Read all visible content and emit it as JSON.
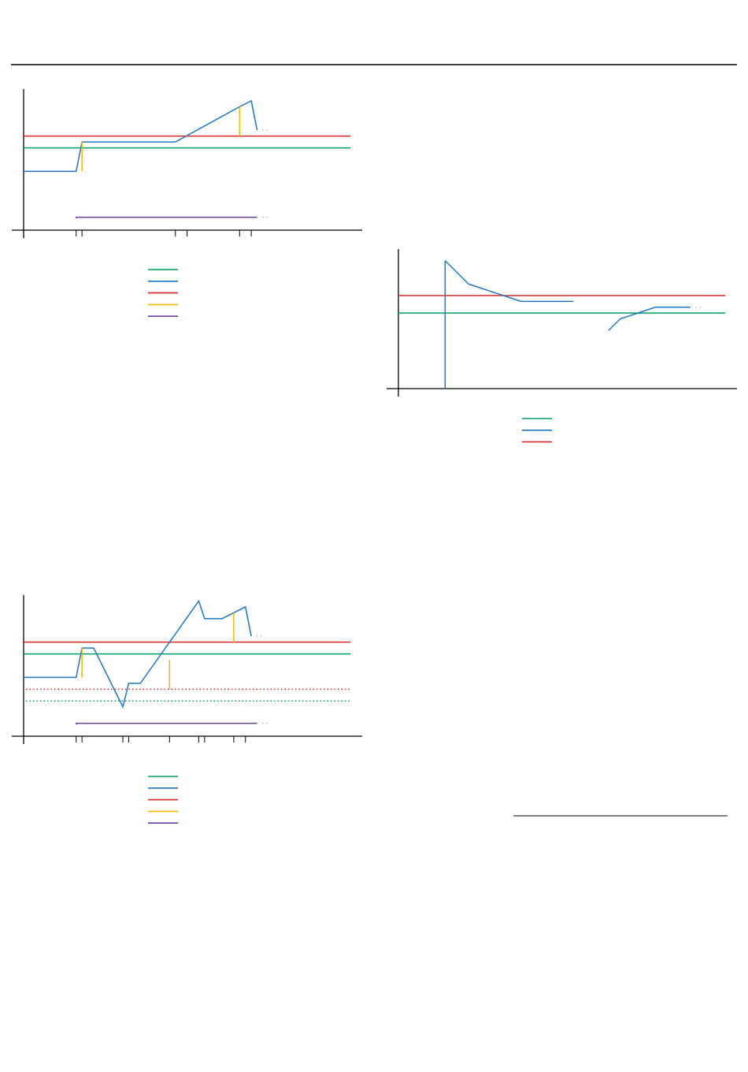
{
  "colors": {
    "green": "#009e60",
    "blue": "#1f77c4",
    "red": "#d62728",
    "yellow": "#f5b800",
    "purple": "#6a3d9a",
    "axis": "#000000"
  },
  "chart_data": [
    {
      "type": "line",
      "title": "",
      "grid": false,
      "legend_placement": "below",
      "xlim": [
        0,
        290
      ],
      "ylim": [
        0,
        120
      ],
      "x_ticks": [
        45,
        50,
        130,
        140,
        185,
        195
      ],
      "series": [
        {
          "color_key": "green",
          "x": [
            0,
            280
          ],
          "y": [
            70,
            70
          ]
        },
        {
          "color_key": "red",
          "x": [
            0,
            280
          ],
          "y": [
            80,
            80
          ]
        },
        {
          "color_key": "blue",
          "x": [
            0,
            45,
            50,
            130,
            185,
            195,
            200
          ],
          "y": [
            50,
            50,
            75,
            75,
            105,
            110,
            85
          ]
        },
        {
          "color_key": "yellow",
          "segments": [
            [
              50,
              50,
              50,
              75
            ],
            [
              185,
              80,
              185,
              105
            ]
          ]
        },
        {
          "color_key": "purple",
          "x": [
            45,
            45,
            200
          ],
          "y": [
            10,
            11,
            11
          ]
        }
      ],
      "legend_keys": [
        "green",
        "blue",
        "red",
        "yellow",
        "purple"
      ]
    },
    {
      "type": "line",
      "title": "",
      "grid": false,
      "legend_placement": "below",
      "xlim": [
        0,
        290
      ],
      "ylim": [
        0,
        120
      ],
      "x_ticks": [],
      "series": [
        {
          "color_key": "green",
          "x": [
            0,
            280
          ],
          "y": [
            65,
            65
          ]
        },
        {
          "color_key": "red",
          "x": [
            0,
            280
          ],
          "y": [
            80,
            80
          ]
        },
        {
          "color_key": "blue",
          "segments": [
            [
              40,
              0,
              40,
              110
            ],
            [
              40,
              110,
              60,
              90
            ],
            [
              60,
              90,
              105,
              75
            ],
            [
              105,
              75,
              150,
              75
            ]
          ]
        },
        {
          "color_key": "blue",
          "x": [
            180,
            190,
            220,
            250
          ],
          "y": [
            50,
            60,
            70,
            70
          ]
        }
      ],
      "legend_keys": [
        "green",
        "blue",
        "red"
      ]
    },
    {
      "type": "line",
      "title": "",
      "grid": false,
      "legend_placement": "below",
      "xlim": [
        0,
        290
      ],
      "ylim": [
        0,
        120
      ],
      "x_ticks": [
        45,
        50,
        85,
        90,
        125,
        150,
        155,
        180,
        190
      ],
      "series": [
        {
          "color_key": "green",
          "x": [
            0,
            280
          ],
          "y": [
            70,
            70
          ]
        },
        {
          "color_key": "red",
          "x": [
            0,
            280
          ],
          "y": [
            80,
            80
          ]
        },
        {
          "color_key": "red",
          "style": "dotted",
          "x": [
            2,
            280
          ],
          "y": [
            40,
            40
          ]
        },
        {
          "color_key": "green",
          "style": "dotted",
          "x": [
            2,
            280
          ],
          "y": [
            30,
            30
          ]
        },
        {
          "color_key": "blue",
          "x": [
            0,
            45,
            50,
            60,
            85,
            90,
            100,
            150,
            155,
            170,
            190,
            195
          ],
          "y": [
            50,
            50,
            75,
            75,
            25,
            45,
            45,
            115,
            100,
            100,
            110,
            85
          ]
        },
        {
          "color_key": "yellow",
          "segments": [
            [
              50,
              50,
              50,
              75
            ],
            [
              125,
              40,
              125,
              65
            ],
            [
              180,
              80,
              180,
              105
            ]
          ]
        },
        {
          "color_key": "purple",
          "x": [
            45,
            45,
            200
          ],
          "y": [
            10,
            11,
            11
          ]
        }
      ],
      "legend_keys": [
        "green",
        "blue",
        "red",
        "yellow",
        "purple"
      ]
    }
  ]
}
